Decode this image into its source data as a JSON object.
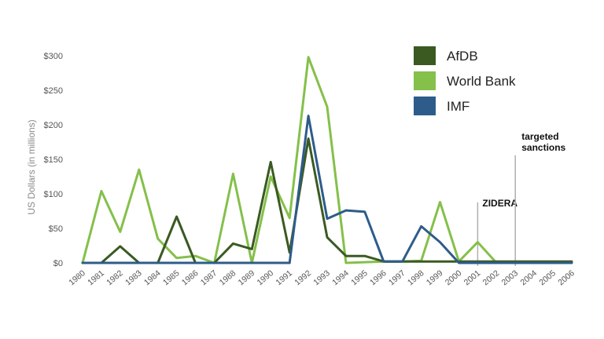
{
  "chart_data": {
    "type": "line",
    "title": "",
    "xlabel": "",
    "ylabel": "US Dollars (in millions)",
    "ylim": [
      0,
      300
    ],
    "y_ticks": [
      0,
      50,
      100,
      150,
      200,
      250,
      300
    ],
    "y_tick_labels": [
      "$0",
      "$50",
      "$100",
      "$150",
      "$200",
      "$250",
      "$300"
    ],
    "x": [
      "1980",
      "1981",
      "1982",
      "1983",
      "1984",
      "1985",
      "1986",
      "1987",
      "1988",
      "1989",
      "1990",
      "1991",
      "1992",
      "1993",
      "1994",
      "1995",
      "1996",
      "1997",
      "1998",
      "1999",
      "2000",
      "2001",
      "2002",
      "2003",
      "2004",
      "2005",
      "2006"
    ],
    "grid": false,
    "legend_position": "top-right",
    "series": [
      {
        "name": "AfDB",
        "color": "#3b5a22",
        "values": [
          0,
          0,
          24,
          0,
          0,
          67,
          0,
          0,
          28,
          20,
          146,
          15,
          180,
          37,
          10,
          10,
          2,
          2,
          2,
          2,
          2,
          2,
          2,
          2,
          2,
          2,
          2
        ]
      },
      {
        "name": "World Bank",
        "color": "#84c04a",
        "values": [
          0,
          104,
          45,
          135,
          35,
          7,
          10,
          0,
          129,
          0,
          125,
          65,
          298,
          226,
          0,
          1,
          2,
          2,
          3,
          88,
          2,
          30,
          0,
          0,
          0,
          0,
          0
        ]
      },
      {
        "name": "IMF",
        "color": "#2e5c8a",
        "values": [
          0,
          0,
          0,
          0,
          0,
          0,
          0,
          0,
          0,
          0,
          0,
          0,
          213,
          64,
          76,
          74,
          2,
          2,
          53,
          30,
          0,
          0,
          0,
          0,
          0,
          0,
          0
        ]
      }
    ],
    "annotations": [
      {
        "text": "ZIDERA",
        "x": "2001"
      },
      {
        "text": "targeted\nsanctions",
        "x": "2003"
      }
    ]
  }
}
